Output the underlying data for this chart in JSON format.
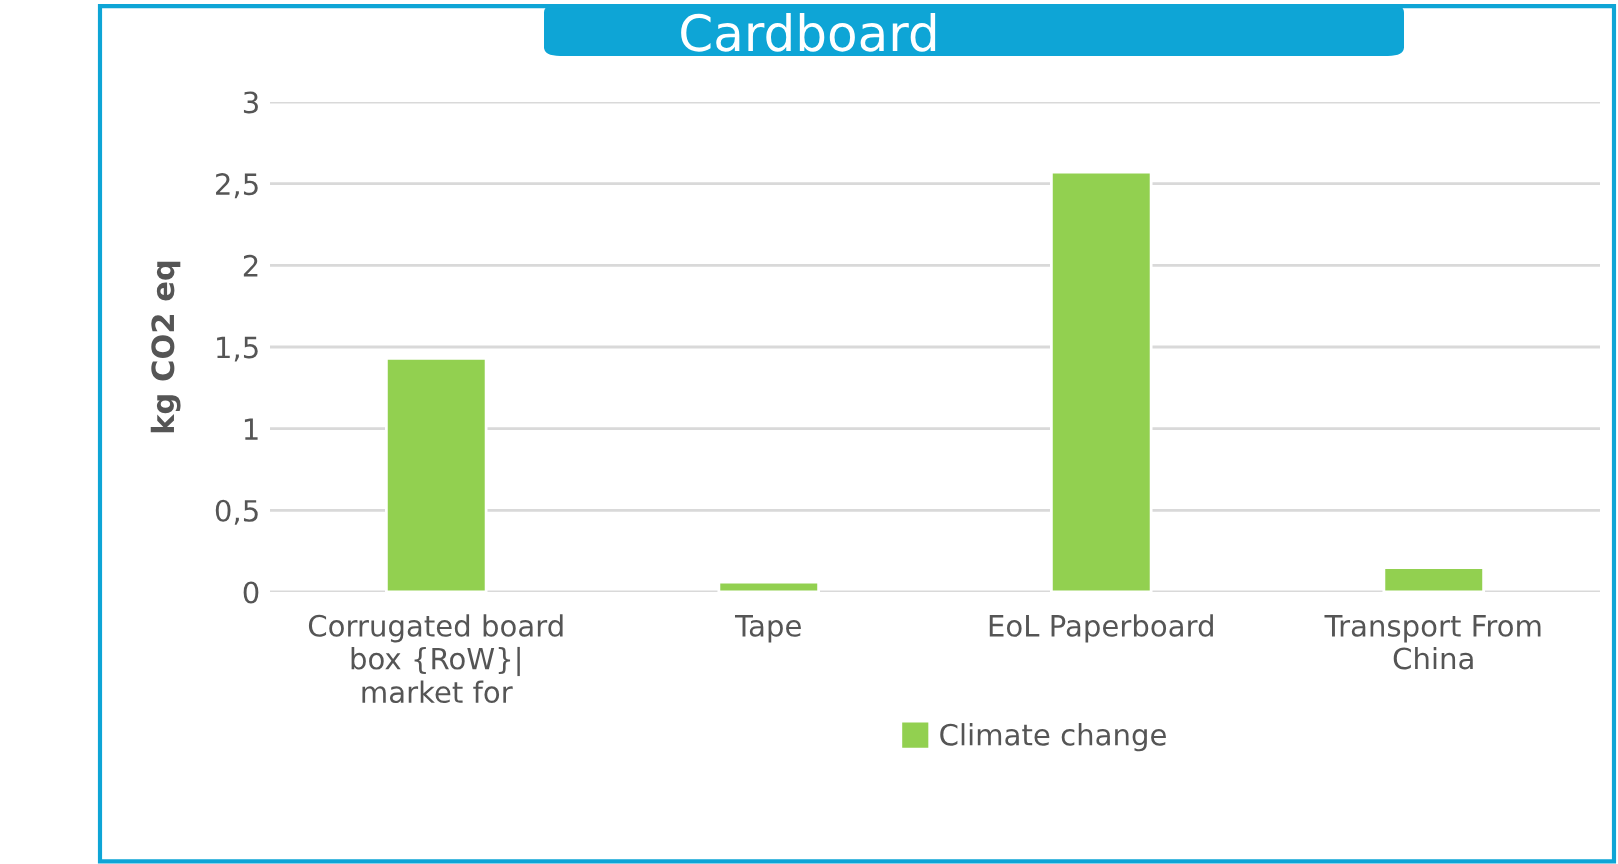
{
  "chart_data": {
    "type": "bar",
    "title": "Cardboard",
    "ylabel": "kg CO2 eq",
    "categories": [
      "Corrugated board box {RoW}| market for",
      "Tape",
      "EoL Paperboard",
      "Transport From China"
    ],
    "series": [
      {
        "name": "Climate change",
        "color": "#92d050",
        "values": [
          1.43,
          0.06,
          2.57,
          0.15
        ]
      }
    ],
    "ylim": [
      0,
      3
    ],
    "yticks": [
      0,
      {
        "value": 0.5,
        "label": "0,5"
      },
      1,
      {
        "value": 1.5,
        "label": "1,5"
      },
      2,
      {
        "value": 2.5,
        "label": "2,5"
      },
      3
    ],
    "grid": "y",
    "legend": "bottom"
  }
}
